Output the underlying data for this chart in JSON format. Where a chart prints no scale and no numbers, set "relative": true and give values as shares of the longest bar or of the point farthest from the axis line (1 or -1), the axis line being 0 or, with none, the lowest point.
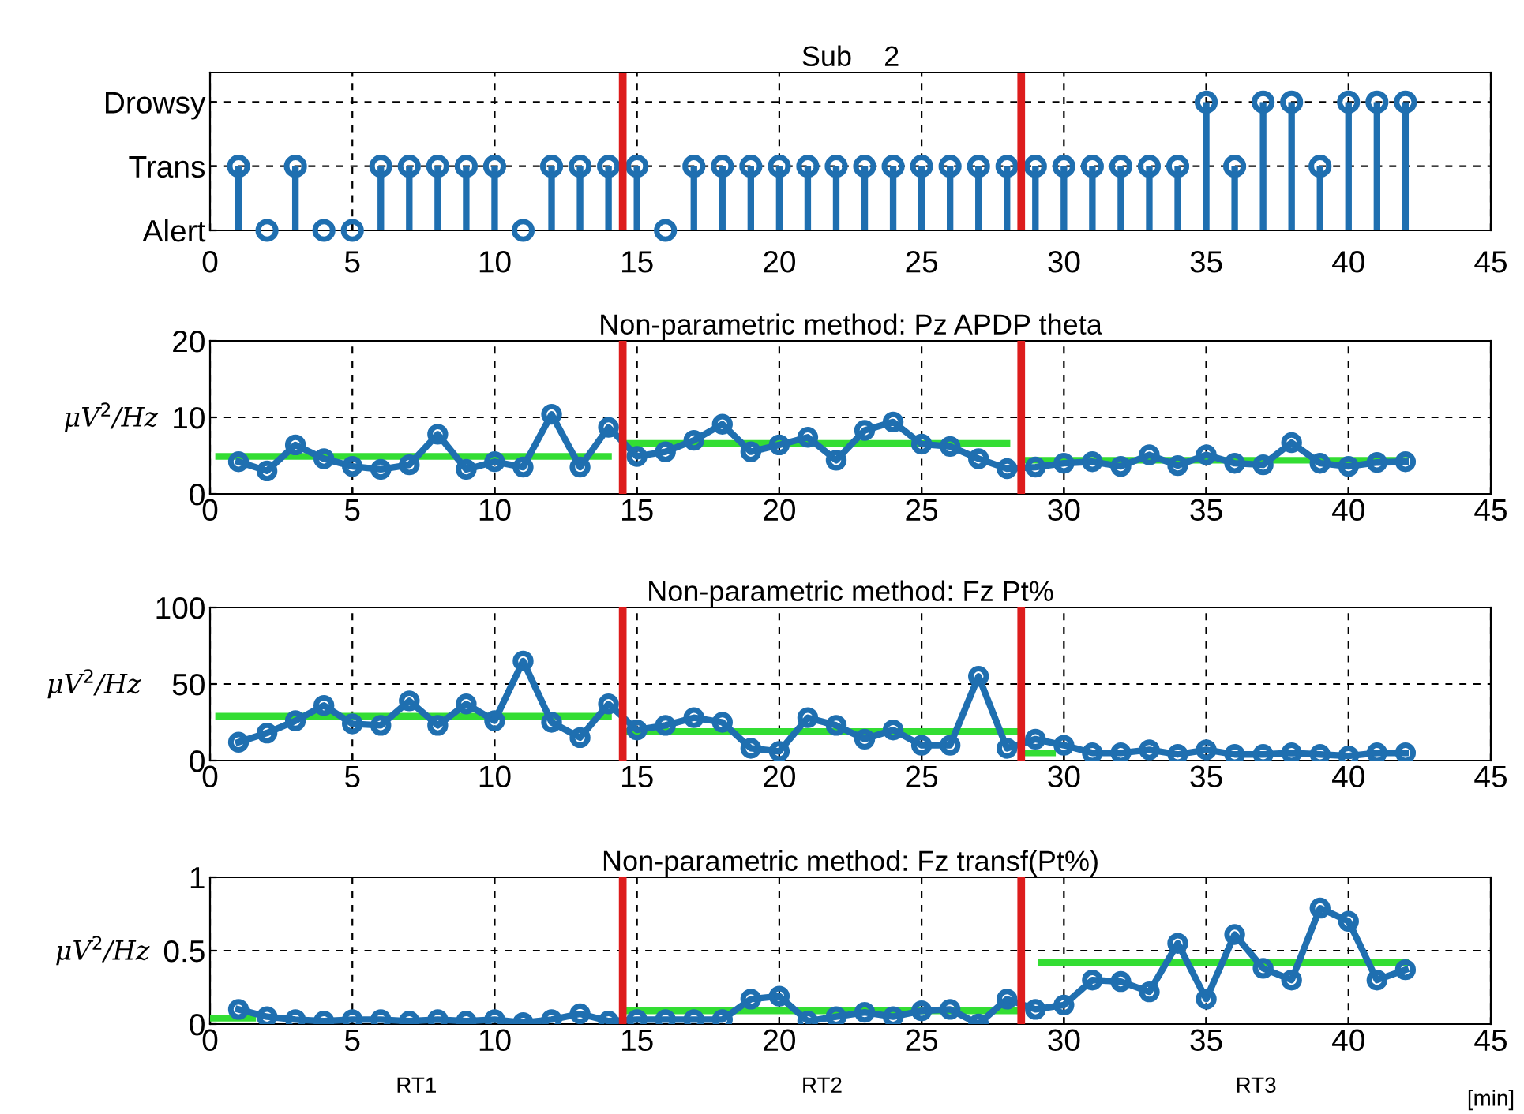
{
  "chart_data": [
    {
      "type": "lollipop",
      "title": "Sub    2",
      "x": [
        1,
        2,
        3,
        4,
        5,
        6,
        7,
        8,
        9,
        10,
        11,
        12,
        13,
        14,
        15,
        16,
        17,
        18,
        19,
        20,
        21,
        22,
        23,
        24,
        25,
        26,
        27,
        28,
        29,
        30,
        31,
        32,
        33,
        34,
        35,
        36,
        37,
        38,
        39,
        40,
        41,
        42
      ],
      "y_categories": [
        "Drowsy",
        "Trans",
        "Alert"
      ],
      "series": [
        {
          "color": "#1f6fb0",
          "values": [
            0.5,
            0,
            0.5,
            0,
            0,
            0.5,
            0.5,
            0.5,
            0.5,
            0.5,
            0,
            0.5,
            0.5,
            0.5,
            0.5,
            0,
            0.5,
            0.5,
            0.5,
            0.5,
            0.5,
            0.5,
            0.5,
            0.5,
            0.5,
            0.5,
            0.5,
            0.5,
            0.5,
            0.5,
            0.5,
            0.5,
            0.5,
            0.5,
            1,
            0.5,
            1,
            1,
            0.5,
            1,
            1,
            1
          ]
        }
      ],
      "relative": true,
      "marker": "circle",
      "xlim": [
        0,
        45
      ],
      "xticks": [
        0,
        5,
        10,
        15,
        20,
        25,
        30,
        35,
        40,
        45
      ],
      "grid": true,
      "ref_lines": [
        {
          "axis": "x",
          "value": 14.5,
          "color": "#dd1c1c"
        },
        {
          "axis": "x",
          "value": 28.5,
          "color": "#dd1c1c"
        }
      ]
    },
    {
      "type": "line",
      "title": "Non-parametric method: Pz APDP theta",
      "ylabel": "μV$^{2}$/Hz",
      "x": [
        1,
        2,
        3,
        4,
        5,
        6,
        7,
        8,
        9,
        10,
        11,
        12,
        13,
        14,
        15,
        16,
        17,
        18,
        19,
        20,
        21,
        22,
        23,
        24,
        25,
        26,
        27,
        28,
        29,
        30,
        31,
        32,
        33,
        34,
        35,
        36,
        37,
        38,
        39,
        40,
        41,
        42
      ],
      "series": [
        {
          "color": "#33dd33",
          "x": [
            0.3,
            14
          ],
          "values": [
            4.9,
            4.9
          ],
          "marker": "none"
        },
        {
          "color": "#33dd33",
          "x": [
            14.6,
            28
          ],
          "values": [
            6.6,
            6.6
          ],
          "marker": "none"
        },
        {
          "color": "#33dd33",
          "x": [
            28.6,
            42
          ],
          "values": [
            4.4,
            4.4
          ],
          "marker": "none"
        },
        {
          "color": "#1f6fb0",
          "values": [
            4.2,
            3,
            6.4,
            4.6,
            3.6,
            3.2,
            3.8,
            7.8,
            3.2,
            4.2,
            3.5,
            10.4,
            3.5,
            8.7,
            4.9,
            5.5,
            7,
            9.1,
            5.5,
            6.4,
            7.4,
            4.4,
            8.3,
            9.4,
            6.5,
            6.2,
            4.6,
            3.3,
            3.5,
            4,
            4.2,
            3.6,
            5.1,
            3.7,
            5.1,
            4,
            3.8,
            6.7,
            4,
            3.6,
            4.1,
            4.2
          ]
        }
      ],
      "marker": "circle",
      "xlim": [
        0,
        45
      ],
      "xticks": [
        0,
        5,
        10,
        15,
        20,
        25,
        30,
        35,
        40,
        45
      ],
      "ylim": [
        0,
        20
      ],
      "yticks": [
        0,
        10,
        20
      ],
      "grid": true,
      "ref_lines": [
        {
          "axis": "x",
          "value": 14.5,
          "color": "#dd1c1c"
        },
        {
          "axis": "x",
          "value": 28.5,
          "color": "#dd1c1c"
        }
      ]
    },
    {
      "type": "line",
      "title": "Non-parametric method: Fz Pt%",
      "ylabel": "μV$^{2}$/Hz",
      "x": [
        1,
        2,
        3,
        4,
        5,
        6,
        7,
        8,
        9,
        10,
        11,
        12,
        13,
        14,
        15,
        16,
        17,
        18,
        19,
        20,
        21,
        22,
        23,
        24,
        25,
        26,
        27,
        28,
        29,
        30,
        31,
        32,
        33,
        34,
        35,
        36,
        37,
        38,
        39,
        40,
        41,
        42
      ],
      "series": [
        {
          "color": "#33dd33",
          "x": [
            0.3,
            14
          ],
          "values": [
            29,
            29
          ],
          "marker": "none"
        },
        {
          "color": "#33dd33",
          "x": [
            14.6,
            28.4
          ],
          "values": [
            19,
            19
          ],
          "marker": "none"
        },
        {
          "color": "#33dd33",
          "x": [
            28.6,
            29.6
          ],
          "values": [
            5,
            5
          ],
          "marker": "none"
        },
        {
          "color": "#1f6fb0",
          "values": [
            12,
            18,
            26,
            36,
            24,
            23,
            39,
            23,
            37,
            26,
            65,
            25,
            15,
            37,
            20,
            23,
            28,
            25,
            8,
            6,
            28,
            23,
            14,
            20,
            10,
            10,
            55,
            8,
            14,
            10,
            5,
            5,
            7,
            4,
            7,
            4,
            4,
            5,
            4,
            3,
            5,
            5
          ]
        }
      ],
      "marker": "circle",
      "xlim": [
        0,
        45
      ],
      "xticks": [
        0,
        5,
        10,
        15,
        20,
        25,
        30,
        35,
        40,
        45
      ],
      "ylim": [
        0,
        100
      ],
      "yticks": [
        0,
        50,
        100
      ],
      "grid": true,
      "ref_lines": [
        {
          "axis": "x",
          "value": 14.5,
          "color": "#dd1c1c"
        },
        {
          "axis": "x",
          "value": 28.5,
          "color": "#dd1c1c"
        }
      ]
    },
    {
      "type": "line",
      "title": "Non-parametric method: Fz transf(Pt%)",
      "ylabel": "μV$^{2}$/Hz",
      "xlabel": "[min]",
      "annotations": [
        "RT1",
        "RT2",
        "RT3"
      ],
      "x": [
        1,
        2,
        3,
        4,
        5,
        6,
        7,
        8,
        9,
        10,
        11,
        12,
        13,
        14,
        15,
        16,
        17,
        18,
        19,
        20,
        21,
        22,
        23,
        24,
        25,
        26,
        27,
        28,
        29,
        30,
        31,
        32,
        33,
        34,
        35,
        36,
        37,
        38,
        39,
        40,
        41,
        42
      ],
      "series": [
        {
          "color": "#33dd33",
          "x": [
            0,
            1.5
          ],
          "values": [
            0.04,
            0.04
          ],
          "marker": "none"
        },
        {
          "color": "#33dd33",
          "x": [
            14.6,
            28.4
          ],
          "values": [
            0.09,
            0.09
          ],
          "marker": "none"
        },
        {
          "color": "#33dd33",
          "x": [
            29.2,
            42
          ],
          "values": [
            0.42,
            0.42
          ],
          "marker": "none"
        },
        {
          "color": "#1f6fb0",
          "values": [
            0.1,
            0.05,
            0.03,
            0.02,
            0.03,
            0.03,
            0.02,
            0.03,
            0.02,
            0.03,
            0.01,
            0.03,
            0.07,
            0.02,
            0.03,
            0.03,
            0.03,
            0.03,
            0.17,
            0.19,
            0.02,
            0.05,
            0.08,
            0.05,
            0.09,
            0.1,
            0,
            0.17,
            0.1,
            0.13,
            0.3,
            0.29,
            0.22,
            0.55,
            0.17,
            0.61,
            0.38,
            0.3,
            0.79,
            0.7,
            0.3,
            0.37
          ]
        }
      ],
      "marker": "circle",
      "xlim": [
        0,
        45
      ],
      "xticks": [
        0,
        5,
        10,
        15,
        20,
        25,
        30,
        35,
        40,
        45
      ],
      "ylim": [
        0,
        1
      ],
      "yticks": [
        0,
        0.5,
        1
      ],
      "grid": true,
      "ref_lines": [
        {
          "axis": "x",
          "value": 14.5,
          "color": "#dd1c1c"
        },
        {
          "axis": "x",
          "value": 28.5,
          "color": "#dd1c1c"
        }
      ]
    }
  ]
}
